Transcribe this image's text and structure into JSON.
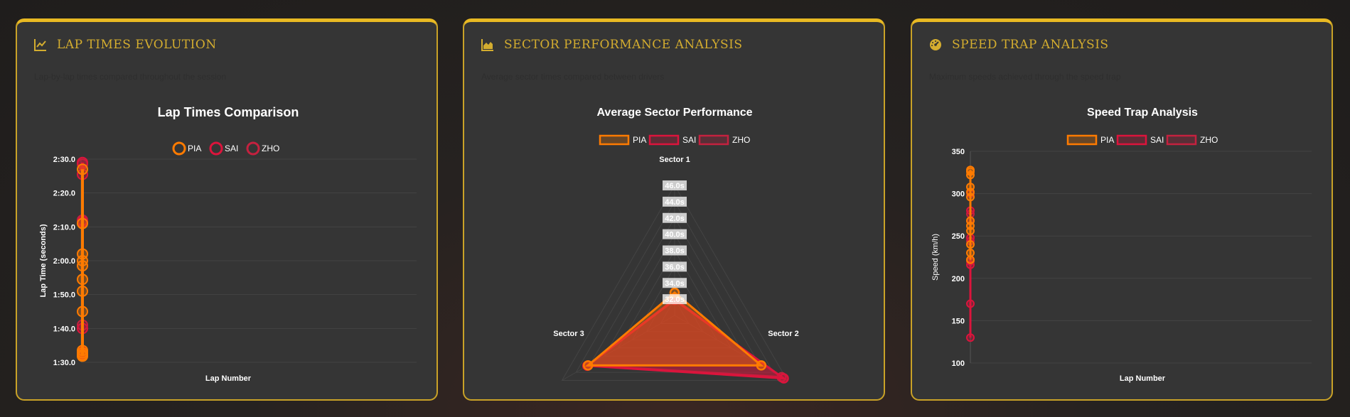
{
  "colors": {
    "accent": "#d4ad2f",
    "pia": "#ff7b00",
    "sai": "#dc143c",
    "zho": "#c4213f"
  },
  "panels": [
    {
      "title": "LAP TIMES EVOLUTION",
      "subtitle": "Lap-by-lap times compared throughout the session",
      "icon": "line-chart-icon"
    },
    {
      "title": "SECTOR PERFORMANCE ANALYSIS",
      "subtitle": "Average sector times compared between drivers",
      "icon": "area-chart-icon"
    },
    {
      "title": "SPEED TRAP ANALYSIS",
      "subtitle": "Maximum speeds achieved through the speed trap",
      "icon": "speedometer-icon"
    }
  ],
  "chart_data": [
    {
      "type": "line",
      "title": "Lap Times Comparison",
      "xlabel": "Lap Number",
      "ylabel": "Lap Time (seconds)",
      "ylim": [
        90,
        150
      ],
      "y_ticks": [
        "1:30.0",
        "1:40.0",
        "1:50.0",
        "2:00.0",
        "2:10.0",
        "2:20.0",
        "2:30.0"
      ],
      "legend": "top",
      "grid": true,
      "series": [
        {
          "name": "PIA",
          "values": [
            147,
            131,
            122,
            120,
            118.5,
            114.5,
            111,
            105,
            93.5,
            92.8,
            92.2,
            91.8
          ]
        },
        {
          "name": "SAI",
          "values": [
            149,
            145.5,
            131.5,
            100,
            93,
            92.5
          ]
        },
        {
          "name": "ZHO",
          "values": [
            148.5,
            132,
            101,
            92
          ]
        }
      ]
    },
    {
      "type": "radar",
      "title": "Average Sector Performance",
      "categories": [
        "Sector 1",
        "Sector 2",
        "Sector 3"
      ],
      "r_ticks": [
        "32.0s",
        "34.0s",
        "36.0s",
        "38.0s",
        "40.0s",
        "42.0s",
        "44.0s",
        "46.0s"
      ],
      "rlim": [
        30,
        46
      ],
      "legend": "top",
      "series": [
        {
          "name": "PIA",
          "values": [
            32.8,
            42.3,
            42.3
          ]
        },
        {
          "name": "SAI",
          "values": [
            31.9,
            45.5,
            42.4
          ]
        },
        {
          "name": "ZHO",
          "values": [
            32.0,
            45.2,
            42.3
          ]
        }
      ]
    },
    {
      "type": "line",
      "title": "Speed Trap Analysis",
      "xlabel": "Lap Number",
      "ylabel": "Speed (km/h)",
      "ylim": [
        100,
        350
      ],
      "y_ticks": [
        "100",
        "150",
        "200",
        "250",
        "300",
        "350"
      ],
      "legend": "top",
      "grid": true,
      "series": [
        {
          "name": "PIA",
          "values": [
            328,
            326,
            322,
            308,
            302,
            296,
            268,
            262,
            256,
            240,
            230,
            222
          ]
        },
        {
          "name": "SAI",
          "values": [
            280,
            268,
            248,
            216,
            170,
            130
          ]
        },
        {
          "name": "ZHO",
          "values": [
            300,
            276,
            244,
            220
          ]
        }
      ]
    }
  ]
}
